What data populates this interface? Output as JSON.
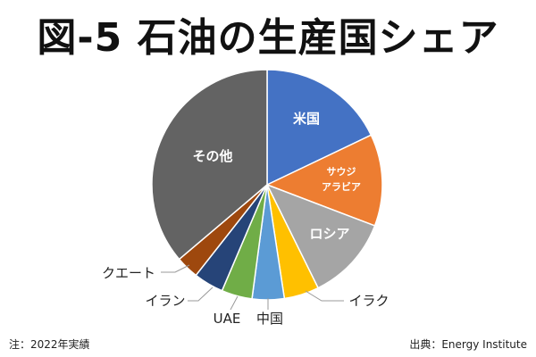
{
  "chart_data": {
    "type": "pie",
    "title": "図-5 石油の生産国シェア",
    "slices": [
      {
        "label": "米国",
        "value": 17.9,
        "color": "#4472C4"
      },
      {
        "label": "サウジアラビア",
        "label_lines": [
          "サウジ",
          "アラビア"
        ],
        "value": 12.9,
        "color": "#ED7D31"
      },
      {
        "label": "ロシア",
        "value": 11.9,
        "color": "#A5A5A5"
      },
      {
        "label": "イラク",
        "value": 4.9,
        "color": "#FFC000"
      },
      {
        "label": "中国",
        "value": 4.5,
        "color": "#5B9BD5"
      },
      {
        "label": "UAE",
        "value": 4.3,
        "color": "#70AD47"
      },
      {
        "label": "イラン",
        "value": 4.2,
        "color": "#264478"
      },
      {
        "label": "クエート",
        "value": 3.2,
        "color": "#9E480E"
      },
      {
        "label": "その他",
        "value": 36.2,
        "color": "#636363"
      }
    ],
    "start": "top",
    "direction": "clockwise",
    "legend": "none"
  },
  "footer": {
    "note": "注：2022年実績",
    "source": "出典：Energy Institute"
  }
}
